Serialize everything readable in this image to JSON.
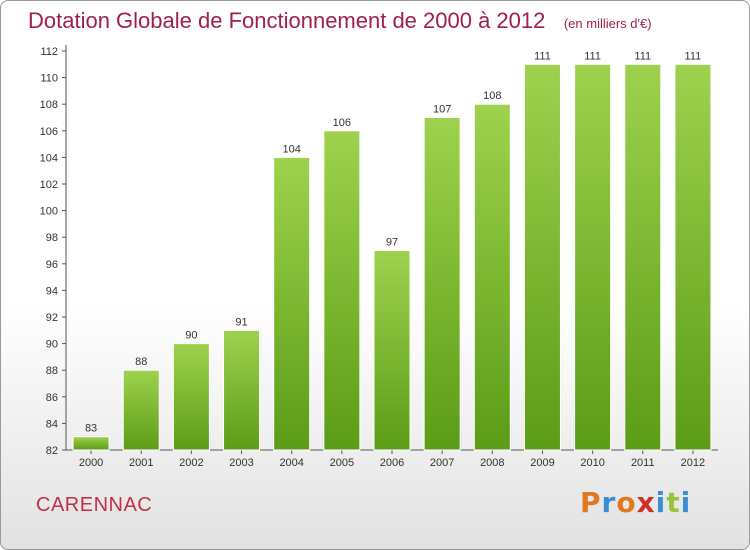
{
  "header": {
    "title": "Dotation Globale de Fonctionnement de 2000 à 2012",
    "subtitle": "(en milliers d'€)"
  },
  "footer": {
    "commune": "CARENNAC",
    "logo": "Proxiti"
  },
  "colors": {
    "bar_top": "#9ed24e",
    "bar_bottom": "#5c9c16",
    "title": "#a0204a",
    "logo_letters": [
      "#e0781e",
      "#3a8fd0",
      "#e0781e",
      "#d0302a",
      "#3a8fd0",
      "#9ac23c",
      "#3a8fd0"
    ]
  },
  "chart_data": {
    "type": "bar",
    "categories": [
      "2000",
      "2001",
      "2002",
      "2003",
      "2004",
      "2005",
      "2006",
      "2007",
      "2008",
      "2009",
      "2010",
      "2011",
      "2012"
    ],
    "values": [
      83,
      88,
      90,
      91,
      104,
      106,
      97,
      107,
      108,
      111,
      111,
      111,
      111
    ],
    "yticks": [
      82,
      84,
      86,
      88,
      90,
      92,
      94,
      96,
      98,
      100,
      102,
      104,
      106,
      108,
      110,
      112
    ],
    "ylim": [
      82,
      112
    ],
    "grid": false,
    "legend": "none"
  }
}
